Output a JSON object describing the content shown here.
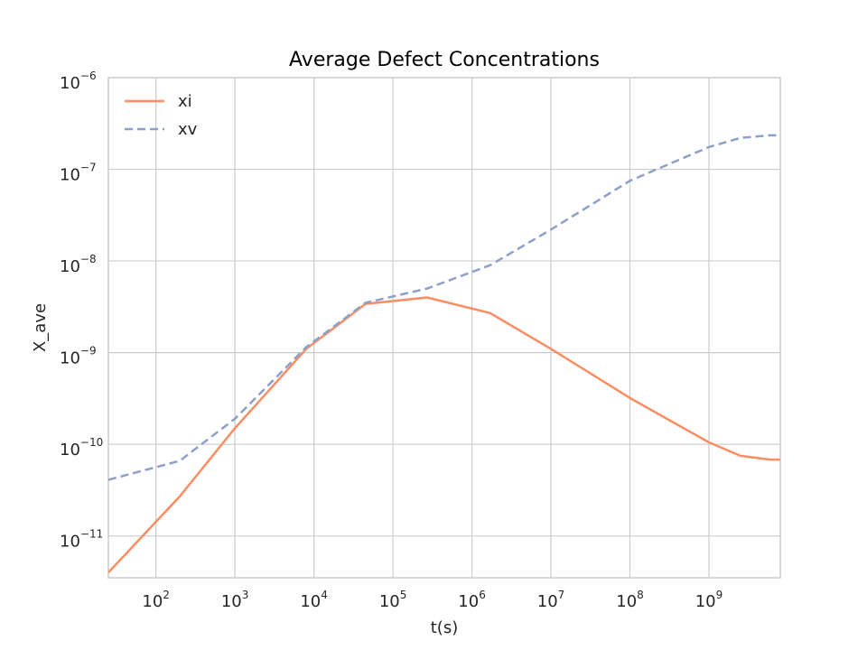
{
  "chart_data": {
    "type": "line",
    "title": "Average Defect Concentrations",
    "xlabel": "t(s)",
    "ylabel": "X_ave",
    "xscale": "log",
    "yscale": "log",
    "xlim": [
      25,
      8000000000
    ],
    "ylim": [
      3.5e-12,
      1e-06
    ],
    "grid": true,
    "legend": "top-left",
    "x_ticks": [
      {
        "base": "10",
        "exp": "2",
        "value": 100
      },
      {
        "base": "10",
        "exp": "3",
        "value": 1000
      },
      {
        "base": "10",
        "exp": "4",
        "value": 10000
      },
      {
        "base": "10",
        "exp": "5",
        "value": 100000
      },
      {
        "base": "10",
        "exp": "6",
        "value": 1000000
      },
      {
        "base": "10",
        "exp": "7",
        "value": 10000000
      },
      {
        "base": "10",
        "exp": "8",
        "value": 100000000
      },
      {
        "base": "10",
        "exp": "9",
        "value": 1000000000
      }
    ],
    "y_ticks": [
      {
        "base": "10",
        "exp": "−11",
        "value": 1e-11
      },
      {
        "base": "10",
        "exp": "−10",
        "value": 1e-10
      },
      {
        "base": "10",
        "exp": "−9",
        "value": 1e-09
      },
      {
        "base": "10",
        "exp": "−8",
        "value": 1e-08
      },
      {
        "base": "10",
        "exp": "−7",
        "value": 1e-07
      },
      {
        "base": "10",
        "exp": "−6",
        "value": 1e-06
      }
    ],
    "series": [
      {
        "name": "xi",
        "color": "#fc8d62",
        "dash": "solid",
        "x": [
          25,
          200,
          1000,
          8000,
          45000,
          270000,
          1700000,
          10000000,
          100000000,
          1000000000,
          2500000000,
          6000000000,
          8000000000
        ],
        "y": [
          4e-12,
          2.7e-11,
          1.5e-10,
          1.1e-09,
          3.4e-09,
          4e-09,
          2.7e-09,
          1.1e-09,
          3.2e-10,
          1.05e-10,
          7.5e-11,
          6.8e-11,
          6.8e-11
        ]
      },
      {
        "name": "xv",
        "color": "#8da0cb",
        "dash": "dashed",
        "x": [
          25,
          200,
          1000,
          8000,
          45000,
          270000,
          1700000,
          10000000,
          100000000,
          1000000000,
          2500000000,
          6000000000,
          8000000000
        ],
        "y": [
          4.1e-11,
          6.6e-11,
          1.9e-10,
          1.15e-09,
          3.5e-09,
          5e-09,
          9e-09,
          2.2e-08,
          7.5e-08,
          1.75e-07,
          2.2e-07,
          2.35e-07,
          2.35e-07
        ]
      }
    ]
  }
}
